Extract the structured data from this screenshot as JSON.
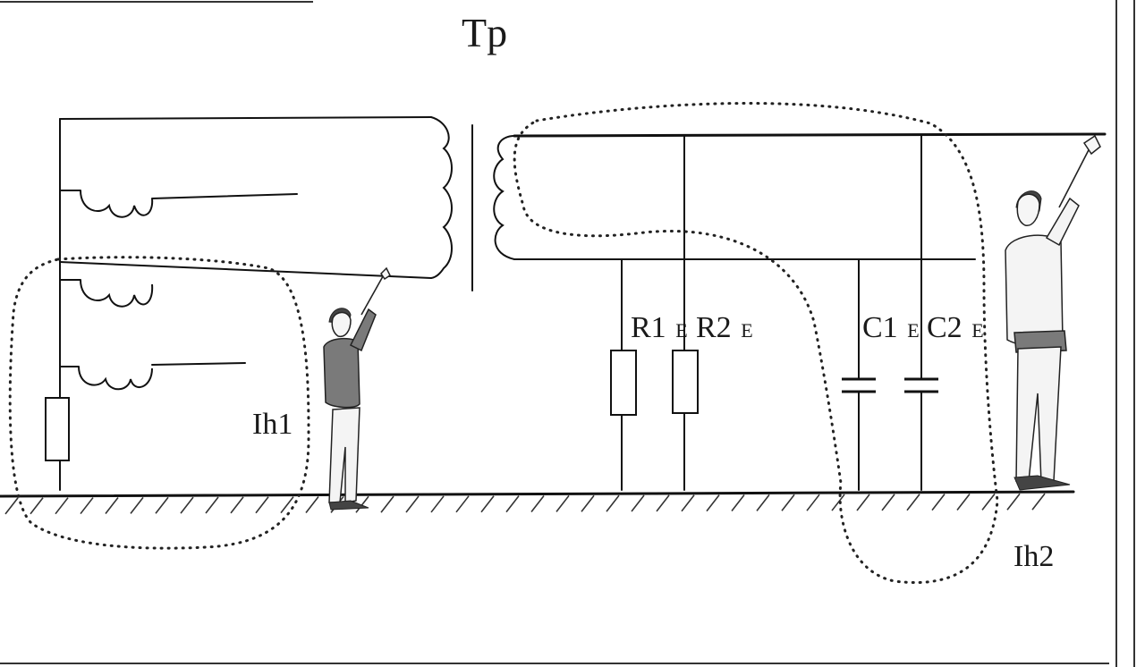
{
  "labels": {
    "transformer": "Tp",
    "r1_main": "R1",
    "r1_sub": "E",
    "r2_main": "R2",
    "r2_sub": "E",
    "c1_main": "C1",
    "c1_sub": "E",
    "c2_main": "C2",
    "c2_sub": "E",
    "current_1": "Ih1",
    "current_2": "Ih2"
  }
}
